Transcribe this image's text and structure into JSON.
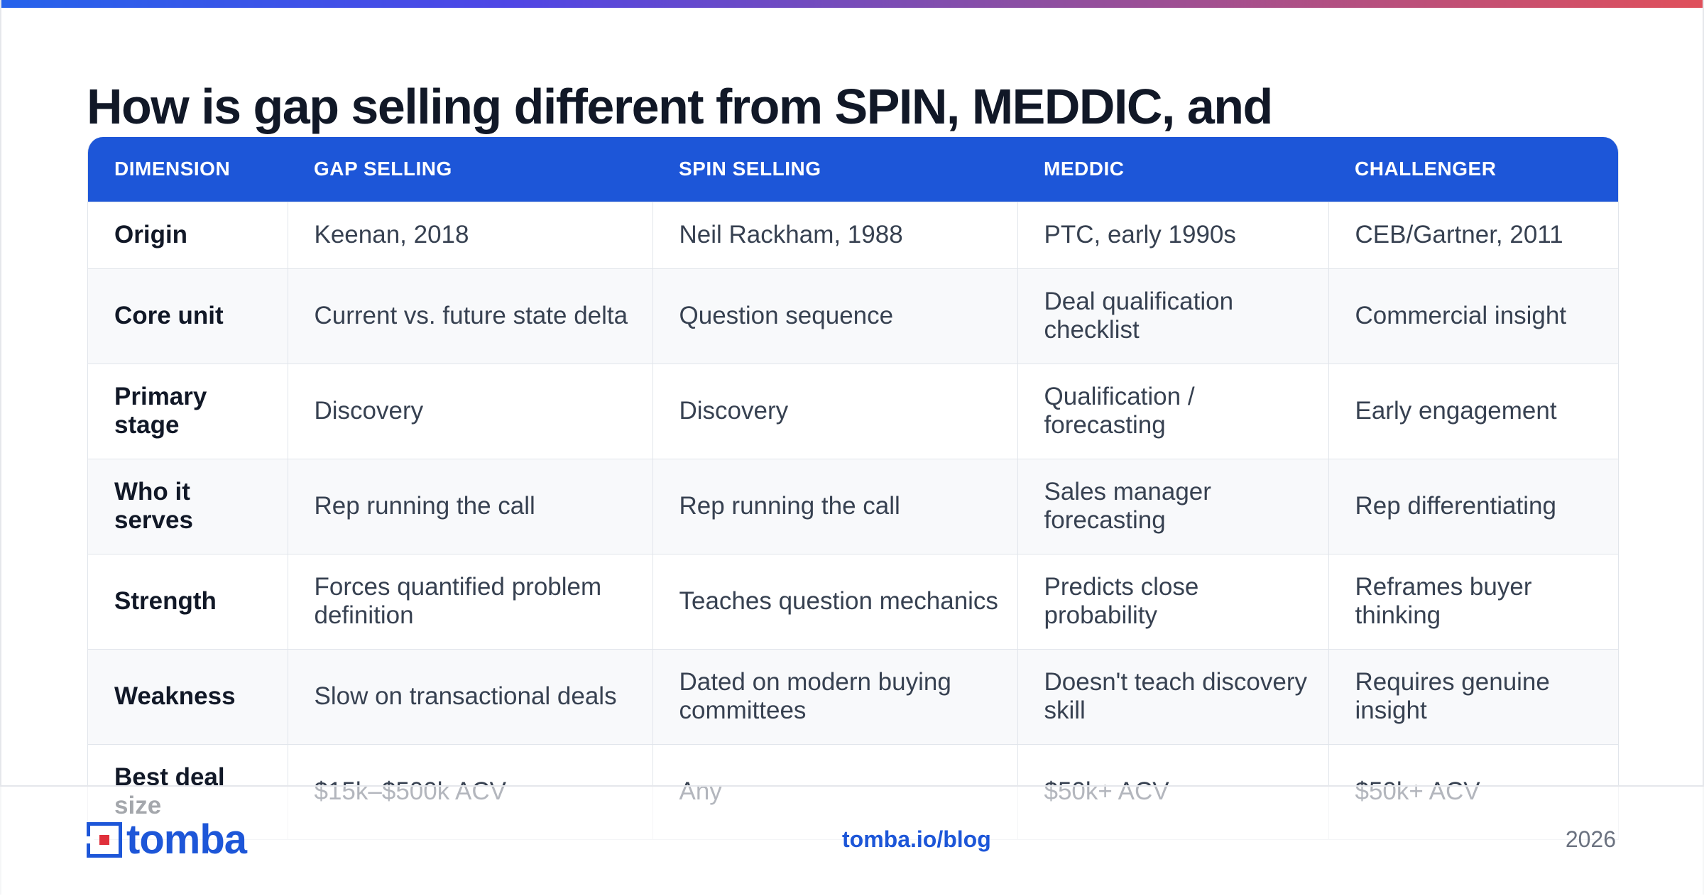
{
  "title": "How is gap selling different from SPIN, MEDDIC, and",
  "table": {
    "headers": [
      "DIMENSION",
      "GAP SELLING",
      "SPIN SELLING",
      "MEDDIC",
      "CHALLENGER"
    ],
    "rows": [
      [
        "Origin",
        "Keenan, 2018",
        "Neil Rackham, 1988",
        "PTC, early 1990s",
        "CEB/Gartner, 2011"
      ],
      [
        "Core unit",
        "Current vs. future state delta",
        "Question sequence",
        "Deal qualification checklist",
        "Commercial insight"
      ],
      [
        "Primary stage",
        "Discovery",
        "Discovery",
        "Qualification / forecasting",
        "Early engagement"
      ],
      [
        "Who it serves",
        "Rep running the call",
        "Rep running the call",
        "Sales manager forecasting",
        "Rep differentiating"
      ],
      [
        "Strength",
        "Forces quantified problem definition",
        "Teaches question mechanics",
        "Predicts close probability",
        "Reframes buyer thinking"
      ],
      [
        "Weakness",
        "Slow on transactional deals",
        "Dated on modern buying committees",
        "Doesn't teach discovery skill",
        "Requires genuine insight"
      ],
      [
        "Best deal size",
        "$15k–$500k ACV",
        "Any",
        "$50k+ ACV",
        "$50k+ ACV"
      ]
    ]
  },
  "footer": {
    "logo_text": "tomba",
    "link": "tomba.io/blog",
    "year": "2026"
  },
  "colors": {
    "brand_blue": "#1d56d8",
    "title": "#111827",
    "gradient_start": "#2563eb",
    "gradient_end": "#e0505b"
  }
}
